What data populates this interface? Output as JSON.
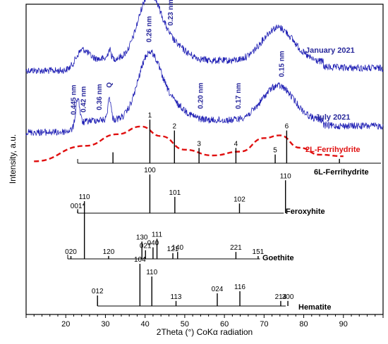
{
  "chart_data": {
    "type": "line",
    "xlabel": "2Theta (°) CoKα radiation",
    "ylabel": "Intensity, a.u.",
    "xlim": [
      10,
      100
    ],
    "xticks": [
      20,
      30,
      40,
      50,
      60,
      70,
      80,
      90
    ],
    "grid": false,
    "series": [
      {
        "name": "January 2021",
        "kind": "measured",
        "x_range": [
          10,
          100
        ],
        "broad_peaks": [
          {
            "center": 41.0,
            "height": 1.0,
            "width": 2.8
          },
          {
            "center": 46.5,
            "height": 0.25,
            "width": 3.5
          },
          {
            "center": 73.5,
            "height": 0.55,
            "width": 4.0
          },
          {
            "center": 31.0,
            "height": 0.15,
            "width": 0.4
          },
          {
            "center": 24.0,
            "height": 0.2,
            "width": 1.5
          }
        ],
        "annotations": [
          {
            "x": 46.5,
            "label": "0.23 nm"
          }
        ]
      },
      {
        "name": "July 2021",
        "kind": "measured",
        "x_range": [
          10,
          100
        ],
        "broad_peaks": [
          {
            "center": 41.0,
            "height": 1.0,
            "width": 2.8
          },
          {
            "center": 46.5,
            "height": 0.25,
            "width": 3.5
          },
          {
            "center": 73.5,
            "height": 0.55,
            "width": 4.0
          },
          {
            "center": 31.0,
            "height": 0.35,
            "width": 0.4
          },
          {
            "center": 23.0,
            "height": 0.45,
            "width": 0.5
          }
        ],
        "annotations": [
          {
            "x": 22.0,
            "label": "0.445 nm"
          },
          {
            "x": 24.5,
            "label": "0.42 nm"
          },
          {
            "x": 28.5,
            "label": "0.36 nm"
          },
          {
            "x": 31.0,
            "label": "Q"
          },
          {
            "x": 41.0,
            "label": "0.26 nm"
          },
          {
            "x": 54.0,
            "label": "0.20 nm"
          },
          {
            "x": 63.5,
            "label": "0.17 nm"
          },
          {
            "x": 74.5,
            "label": "0.15 nm"
          }
        ]
      },
      {
        "name": "2L-Ferrihydrite",
        "kind": "profile",
        "points": [
          [
            12,
            0.05
          ],
          [
            25,
            0.45
          ],
          [
            33,
            0.75
          ],
          [
            39,
            0.95
          ],
          [
            44,
            0.7
          ],
          [
            50,
            0.35
          ],
          [
            57,
            0.2
          ],
          [
            64,
            0.3
          ],
          [
            70,
            0.65
          ],
          [
            74,
            0.72
          ],
          [
            79,
            0.4
          ],
          [
            84,
            0.22
          ],
          [
            90,
            0.18
          ]
        ]
      }
    ],
    "reference_patterns": [
      {
        "name": "6L-Ferrihydrite",
        "range": [
          23,
          100
        ],
        "peaks": [
          {
            "x": 31.9,
            "h": 0.25,
            "label": ""
          },
          {
            "x": 41.2,
            "h": 1.0,
            "label": "1"
          },
          {
            "x": 47.4,
            "h": 0.75,
            "label": "2"
          },
          {
            "x": 53.6,
            "h": 0.35,
            "label": "3"
          },
          {
            "x": 62.9,
            "h": 0.35,
            "label": "4"
          },
          {
            "x": 72.8,
            "h": 0.2,
            "label": "5"
          },
          {
            "x": 75.7,
            "h": 0.75,
            "label": "6"
          },
          {
            "x": 89.0,
            "h": 0.1,
            "label": ""
          }
        ]
      },
      {
        "name": "Feroxyhite",
        "range": [
          23,
          75.5
        ],
        "peaks": [
          {
            "x": 23.0,
            "h": 0.05,
            "label": "001*"
          },
          {
            "x": 41.2,
            "h": 1.0,
            "label": "100"
          },
          {
            "x": 47.5,
            "h": 0.42,
            "label": "101"
          },
          {
            "x": 63.8,
            "h": 0.25,
            "label": "102"
          },
          {
            "x": 75.4,
            "h": 0.85,
            "label": "110"
          }
        ]
      },
      {
        "name": "Goethite",
        "range": [
          20.5,
          69.5
        ],
        "peaks": [
          {
            "x": 21.3,
            "h": 0.03,
            "label": "020"
          },
          {
            "x": 24.7,
            "h": 1.0,
            "label": "110"
          },
          {
            "x": 30.8,
            "h": 0.05,
            "label": "120"
          },
          {
            "x": 39.2,
            "h": 0.3,
            "label": "130"
          },
          {
            "x": 40.1,
            "h": 0.15,
            "label": "021"
          },
          {
            "x": 42.0,
            "h": 0.2,
            "label": "040"
          },
          {
            "x": 43.0,
            "h": 0.35,
            "label": "111"
          },
          {
            "x": 47.0,
            "h": 0.1,
            "label": "121"
          },
          {
            "x": 48.2,
            "h": 0.12,
            "label": "140"
          },
          {
            "x": 62.9,
            "h": 0.12,
            "label": "221"
          },
          {
            "x": 68.5,
            "h": 0.03,
            "label": "151"
          }
        ]
      },
      {
        "name": "Hematite",
        "range": [
          28,
          76
        ],
        "peaks": [
          {
            "x": 28.0,
            "h": 0.25,
            "label": "012"
          },
          {
            "x": 38.7,
            "h": 1.0,
            "label": "104"
          },
          {
            "x": 41.7,
            "h": 0.7,
            "label": "110"
          },
          {
            "x": 47.8,
            "h": 0.12,
            "label": "113"
          },
          {
            "x": 58.2,
            "h": 0.3,
            "label": "024"
          },
          {
            "x": 63.9,
            "h": 0.35,
            "label": "116"
          },
          {
            "x": 74.2,
            "h": 0.12,
            "label": "214"
          },
          {
            "x": 76.0,
            "h": 0.12,
            "label": "300"
          }
        ]
      }
    ]
  }
}
